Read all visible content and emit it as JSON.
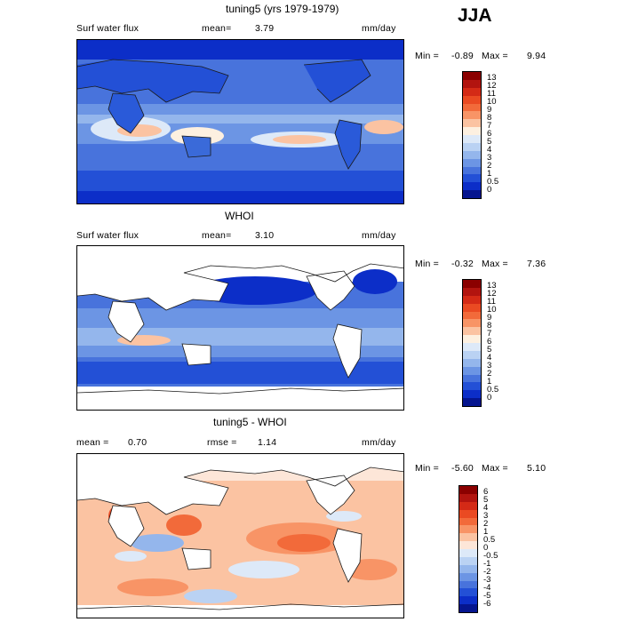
{
  "season": "JJA",
  "panels": [
    {
      "title": "tuning5 (yrs 1979-1979)",
      "variable": "Surf water flux",
      "mean_label": "mean=",
      "mean_value": "3.79",
      "units": "mm/day",
      "min_label": "Min =",
      "min_value": "-0.89",
      "max_label": "Max =",
      "max_value": "9.94",
      "levels": [
        "13",
        "12",
        "11",
        "10",
        "9",
        "8",
        "7",
        "6",
        "5",
        "4",
        "3",
        "2",
        "1",
        "0.5",
        "0"
      ]
    },
    {
      "title": "WHOI",
      "variable": "Surf water flux",
      "mean_label": "mean=",
      "mean_value": "3.10",
      "units": "mm/day",
      "min_label": "Min =",
      "min_value": "-0.32",
      "max_label": "Max =",
      "max_value": "7.36",
      "levels": [
        "13",
        "12",
        "11",
        "10",
        "9",
        "8",
        "7",
        "6",
        "5",
        "4",
        "3",
        "2",
        "1",
        "0.5",
        "0"
      ]
    },
    {
      "title": "tuning5 - WHOI",
      "mean_label": "mean =",
      "mean_value": "0.70",
      "rmse_label": "rmse =",
      "rmse_value": "1.14",
      "units": "mm/day",
      "min_label": "Min =",
      "min_value": "-5.60",
      "max_label": "Max =",
      "max_value": "5.10",
      "levels": [
        "6",
        "5",
        "4",
        "3",
        "2",
        "1",
        "0.5",
        "0",
        "-0.5",
        "-1",
        "-2",
        "-3",
        "-4",
        "-5",
        "-6"
      ]
    }
  ],
  "colors": {
    "abs_scale": [
      "#8b0000",
      "#b2140f",
      "#d42a16",
      "#ea4a22",
      "#f26a3a",
      "#f89466",
      "#fbc3a2",
      "#fdf0e0",
      "#dde9f8",
      "#bad2f3",
      "#94b6ec",
      "#6c95e4",
      "#4873dc",
      "#2350d6",
      "#0c2ec8",
      "#05158f"
    ],
    "diff_scale": [
      "#8b0000",
      "#b2140f",
      "#d42a16",
      "#ea4a22",
      "#f26a3a",
      "#f89466",
      "#fbc3a2",
      "#fde6d8",
      "#dde9f8",
      "#bad2f3",
      "#94b6ec",
      "#6c95e4",
      "#4873dc",
      "#2350d6",
      "#0c2ec8",
      "#05158f"
    ]
  }
}
